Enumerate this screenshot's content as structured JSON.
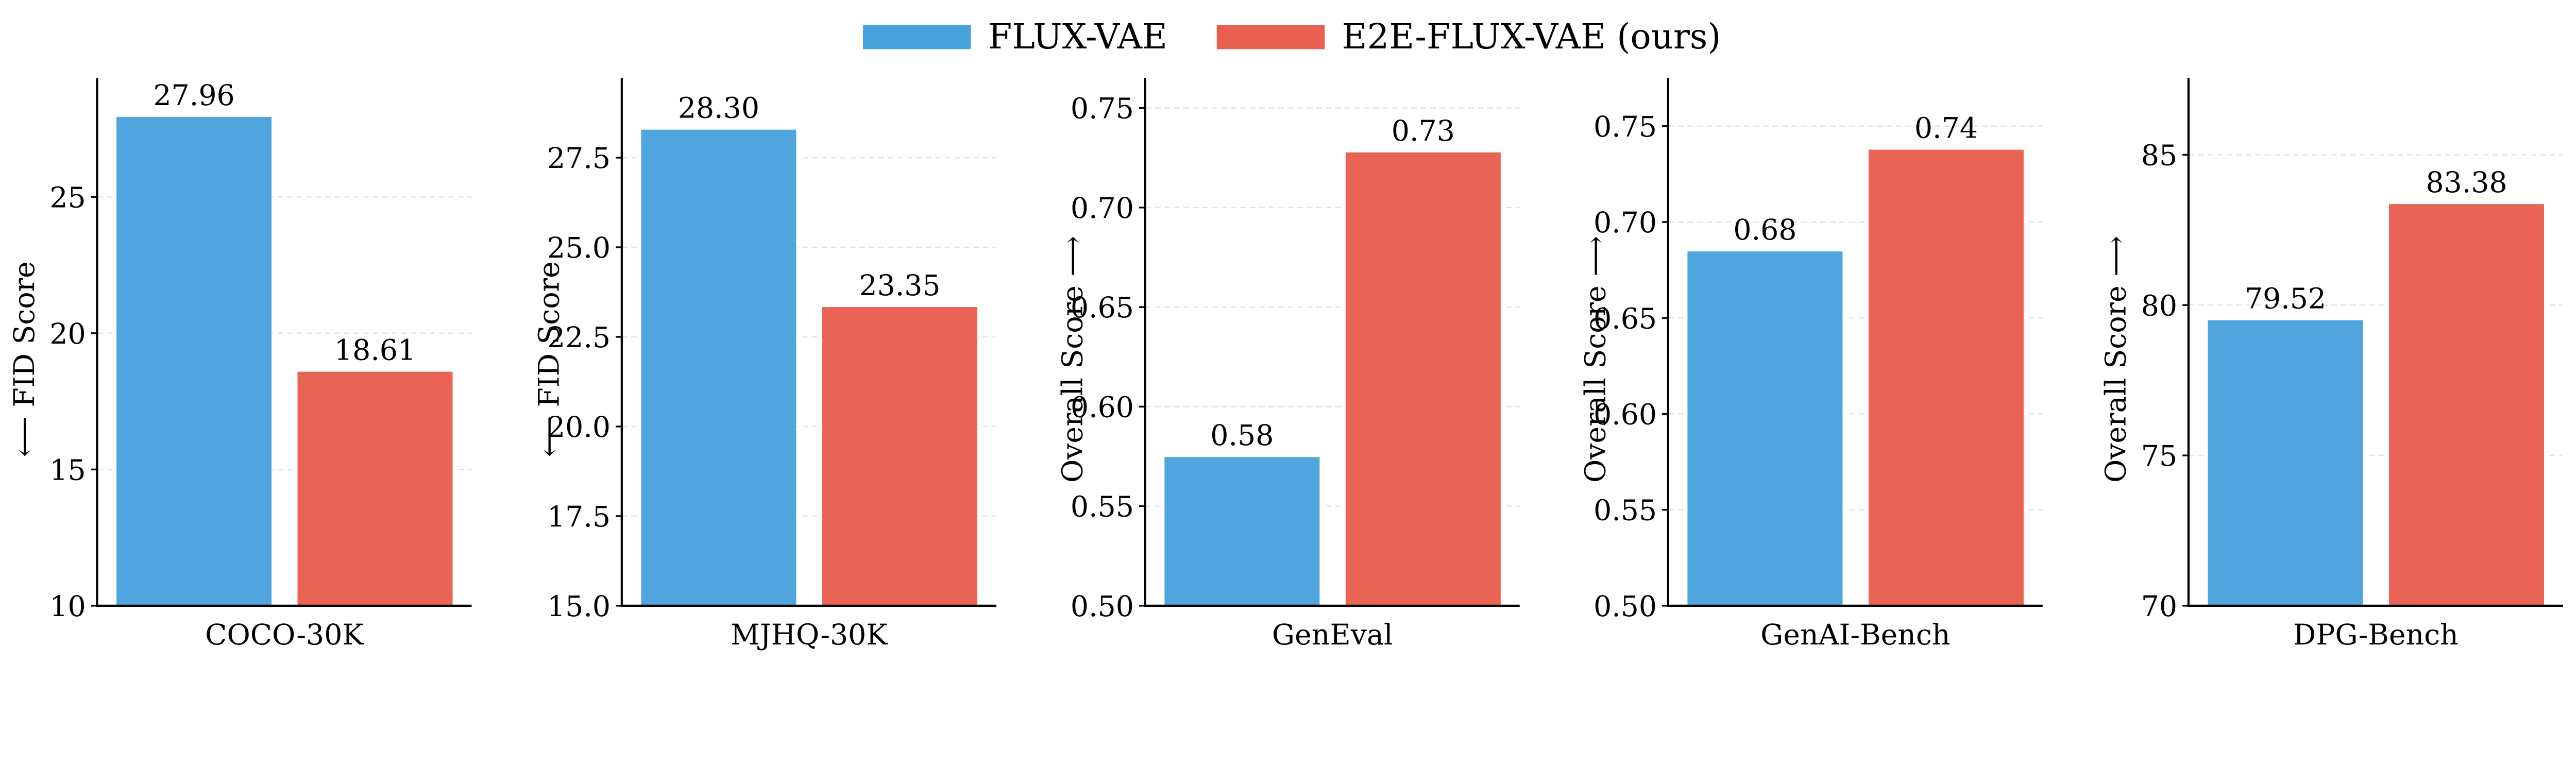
{
  "legend": [
    {
      "name": "FLUX-VAE",
      "color": "#4BA3DE"
    },
    {
      "name": "E2E-FLUX-VAE (ours)",
      "color": "#E95F50"
    }
  ],
  "chart_data": [
    {
      "type": "bar",
      "title": "",
      "xlabel": "COCO-30K",
      "ylabel": "⟵ FID Score",
      "ylim": [
        10,
        29.36
      ],
      "yticks": [
        "10",
        "15",
        "20",
        "25"
      ],
      "ytick_values": [
        10,
        15,
        20,
        25
      ],
      "series": [
        {
          "name": "FLUX-VAE",
          "value": 27.96,
          "label": "27.96"
        },
        {
          "name": "E2E-FLUX-VAE (ours)",
          "value": 18.61,
          "label": "18.61"
        }
      ],
      "grid": true
    },
    {
      "type": "bar",
      "title": "",
      "xlabel": "MJHQ-30K",
      "ylabel": "⟵ FID Score",
      "ylim": [
        15,
        29.72
      ],
      "yticks": [
        "15.0",
        "17.5",
        "20.0",
        "22.5",
        "25.0",
        "27.5"
      ],
      "ytick_values": [
        15,
        17.5,
        20,
        22.5,
        25,
        27.5
      ],
      "series": [
        {
          "name": "FLUX-VAE",
          "value": 28.3,
          "label": "28.30"
        },
        {
          "name": "E2E-FLUX-VAE (ours)",
          "value": 23.35,
          "label": "23.35"
        }
      ],
      "grid": true
    },
    {
      "type": "bar",
      "title": "",
      "xlabel": "GenEval",
      "ylabel": "Overall Score ⟶",
      "ylim": [
        0.5,
        0.765
      ],
      "yticks": [
        "0.50",
        "0.55",
        "0.60",
        "0.65",
        "0.70",
        "0.75"
      ],
      "ytick_values": [
        0.5,
        0.55,
        0.6,
        0.65,
        0.7,
        0.75
      ],
      "series": [
        {
          "name": "FLUX-VAE",
          "value": 0.575,
          "label": "0.58"
        },
        {
          "name": "E2E-FLUX-VAE (ours)",
          "value": 0.728,
          "label": "0.73"
        }
      ],
      "grid": true
    },
    {
      "type": "bar",
      "title": "",
      "xlabel": "GenAI-Bench",
      "ylabel": "Overall Score ⟶",
      "ylim": [
        0.5,
        0.775
      ],
      "yticks": [
        "0.50",
        "0.55",
        "0.60",
        "0.65",
        "0.70",
        "0.75"
      ],
      "ytick_values": [
        0.5,
        0.55,
        0.6,
        0.65,
        0.7,
        0.75
      ],
      "series": [
        {
          "name": "FLUX-VAE",
          "value": 0.685,
          "label": "0.68"
        },
        {
          "name": "E2E-FLUX-VAE (ours)",
          "value": 0.738,
          "label": "0.74"
        }
      ],
      "grid": true
    },
    {
      "type": "bar",
      "title": "",
      "xlabel": "DPG-Bench",
      "ylabel": "Overall Score ⟶",
      "ylim": [
        70,
        87.55
      ],
      "yticks": [
        "70",
        "75",
        "80",
        "85"
      ],
      "ytick_values": [
        70,
        75,
        80,
        85
      ],
      "series": [
        {
          "name": "FLUX-VAE",
          "value": 79.52,
          "label": "79.52"
        },
        {
          "name": "E2E-FLUX-VAE (ours)",
          "value": 83.38,
          "label": "83.38"
        }
      ],
      "grid": true
    }
  ]
}
